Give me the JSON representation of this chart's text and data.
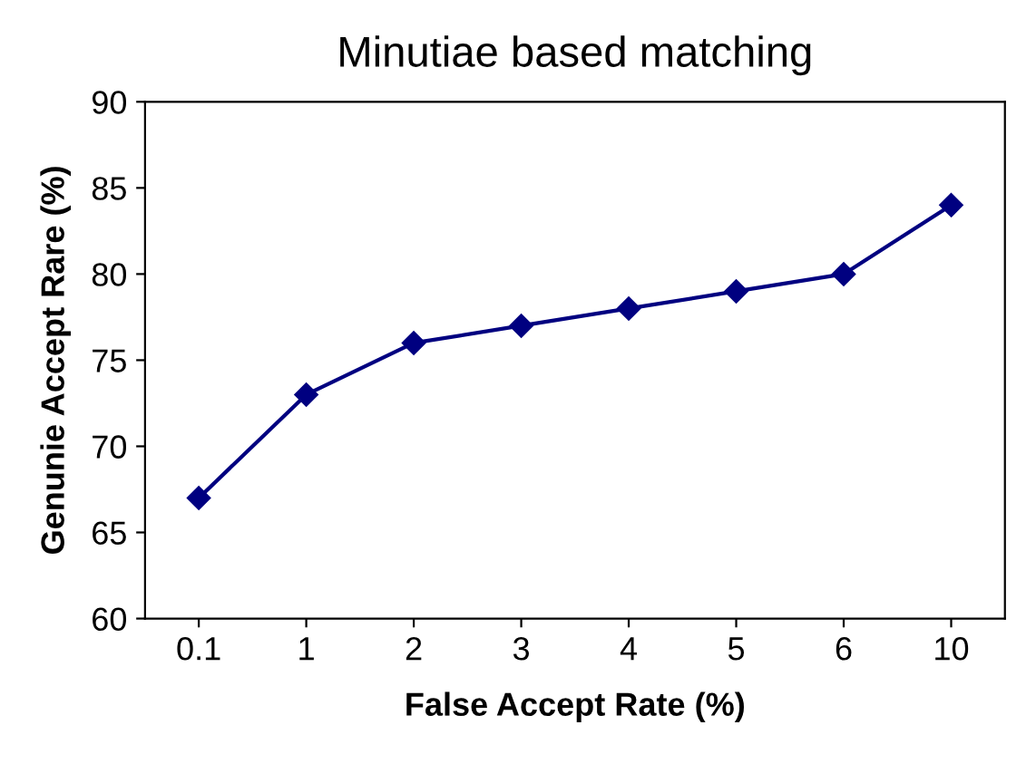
{
  "chart_data": {
    "type": "line",
    "title": "Minutiae based matching",
    "xlabel": "False Accept Rate (%)",
    "ylabel": "Genunie Accept Rare (%)",
    "categories": [
      "0.1",
      "1",
      "2",
      "3",
      "4",
      "5",
      "6",
      "10"
    ],
    "series": [
      {
        "color": "#000080",
        "values": [
          67,
          73,
          76,
          77,
          78,
          79,
          80,
          84
        ]
      }
    ],
    "ylim": [
      60,
      90
    ],
    "yticks": [
      60,
      65,
      70,
      75,
      80,
      85,
      90
    ],
    "grid": false,
    "legend": false,
    "marker": "diamond",
    "line_style": "solid"
  }
}
